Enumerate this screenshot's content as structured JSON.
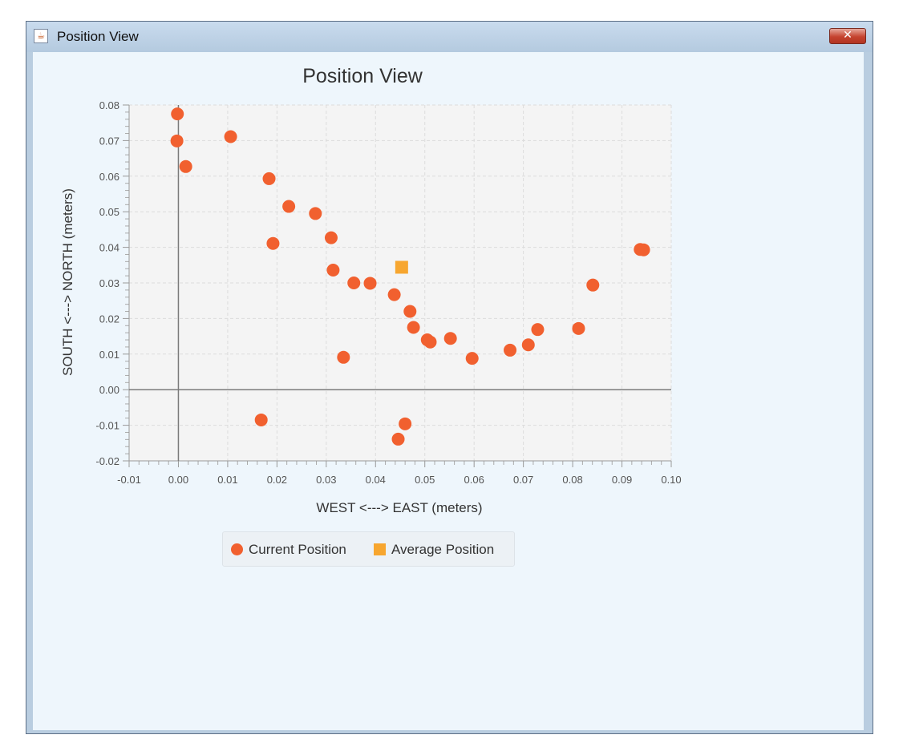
{
  "window": {
    "title": "Position View",
    "app_icon": "java-cup-icon",
    "close_icon": "close-icon",
    "close_glyph": "✕"
  },
  "colors": {
    "current": "#f1602f",
    "average": "#f7a62f",
    "plot_bg": "#f4f4f4",
    "grid": "#dcdcdc",
    "axis_zero": "#7a7a7a"
  },
  "chart_data": {
    "type": "scatter",
    "title": "Position View",
    "xlabel": "WEST <---> EAST (meters)",
    "ylabel": "SOUTH <---> NORTH (meters)",
    "xlim": [
      -0.01,
      0.1
    ],
    "ylim": [
      -0.02,
      0.08
    ],
    "x_ticks": [
      "-0.01",
      "0.00",
      "0.01",
      "0.02",
      "0.03",
      "0.04",
      "0.05",
      "0.06",
      "0.07",
      "0.08",
      "0.09",
      "0.10"
    ],
    "y_ticks": [
      "0.08",
      "0.07",
      "0.06",
      "0.05",
      "0.04",
      "0.03",
      "0.02",
      "0.01",
      "0.00",
      "-0.01",
      "-0.02"
    ],
    "grid": true,
    "legend_position": "bottom",
    "series": [
      {
        "name": "Current Position",
        "marker": "circle",
        "points": [
          [
            -0.0002,
            0.0775
          ],
          [
            -0.0003,
            0.0699
          ],
          [
            0.0015,
            0.0627
          ],
          [
            0.0106,
            0.0711
          ],
          [
            0.0184,
            0.0593
          ],
          [
            0.0224,
            0.0515
          ],
          [
            0.0278,
            0.0495
          ],
          [
            0.031,
            0.0427
          ],
          [
            0.0192,
            0.0411
          ],
          [
            0.0314,
            0.0336
          ],
          [
            0.0356,
            0.03
          ],
          [
            0.0389,
            0.0299
          ],
          [
            0.0438,
            0.0267
          ],
          [
            0.047,
            0.022
          ],
          [
            0.0477,
            0.0175
          ],
          [
            0.0505,
            0.014
          ],
          [
            0.0511,
            0.0134
          ],
          [
            0.0552,
            0.0144
          ],
          [
            0.0596,
            0.0088
          ],
          [
            0.0673,
            0.0111
          ],
          [
            0.071,
            0.0126
          ],
          [
            0.0729,
            0.0169
          ],
          [
            0.0812,
            0.0172
          ],
          [
            0.0841,
            0.0294
          ],
          [
            0.0937,
            0.0394
          ],
          [
            0.0944,
            0.0393
          ],
          [
            0.0335,
            0.0091
          ],
          [
            0.0168,
            -0.0085
          ],
          [
            0.046,
            -0.0096
          ],
          [
            0.0446,
            -0.0139
          ]
        ]
      },
      {
        "name": "Average Position",
        "marker": "square",
        "points": [
          [
            0.0453,
            0.0344
          ]
        ]
      }
    ]
  }
}
